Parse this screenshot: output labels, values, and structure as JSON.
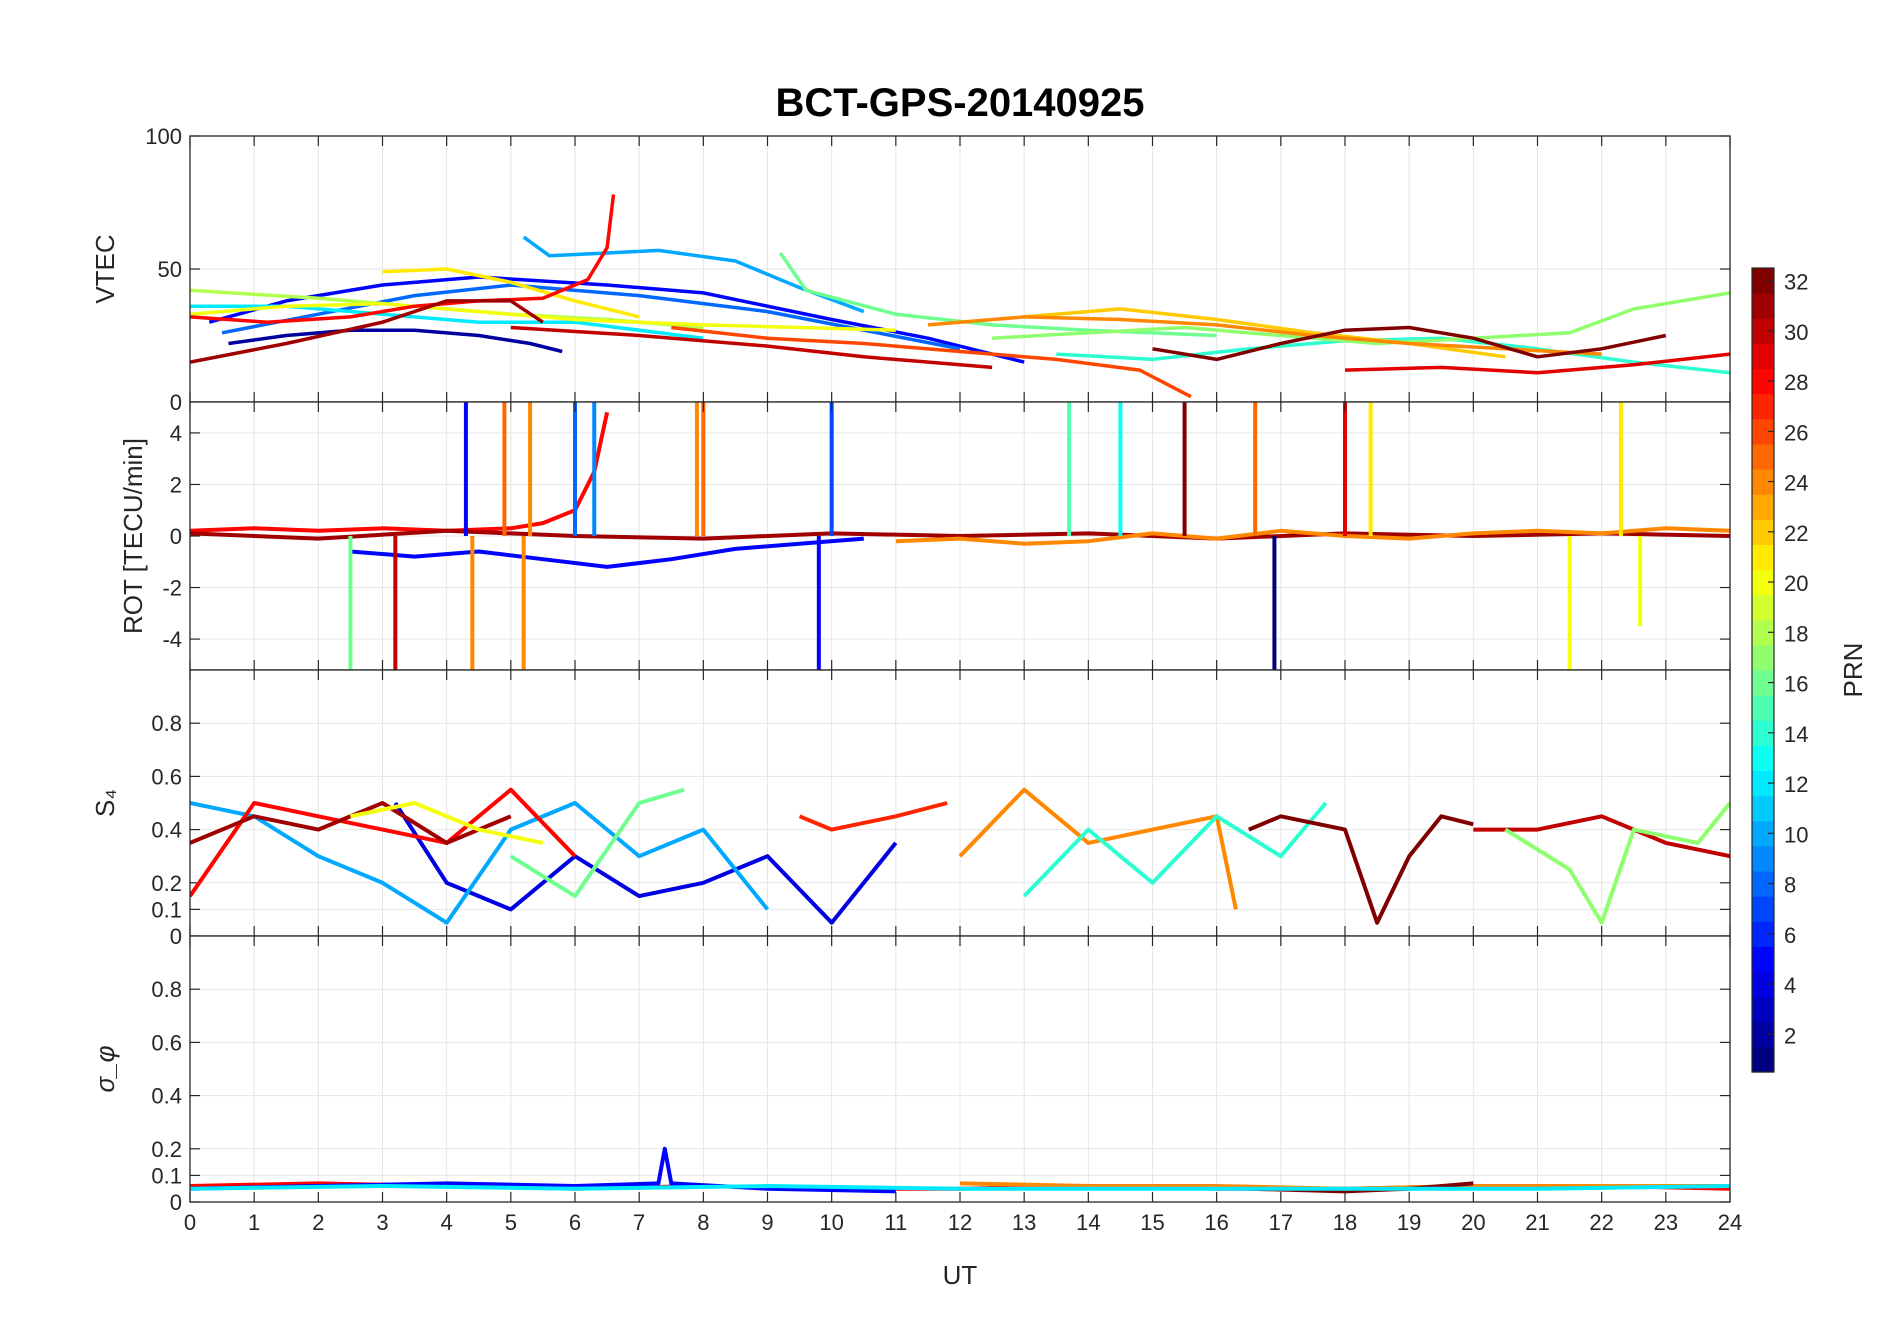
{
  "chart_data": {
    "type": "line",
    "title": "BCT-GPS-20140925",
    "xlabel": "UT",
    "xlim": [
      0,
      24
    ],
    "x_ticks": [
      "0",
      "1",
      "2",
      "3",
      "4",
      "5",
      "6",
      "7",
      "8",
      "9",
      "10",
      "11",
      "12",
      "13",
      "14",
      "15",
      "16",
      "17",
      "18",
      "19",
      "20",
      "21",
      "22",
      "23",
      "24"
    ],
    "colorbar": {
      "label": "PRN",
      "range": [
        1,
        32
      ],
      "ticks": [
        "2",
        "4",
        "6",
        "8",
        "10",
        "12",
        "14",
        "16",
        "18",
        "20",
        "22",
        "24",
        "26",
        "28",
        "30",
        "32"
      ],
      "colormap": "jet"
    },
    "panels": [
      {
        "id": "vtec",
        "ylabel": "VTEC",
        "ylim": [
          0,
          100
        ],
        "y_ticks": [
          "0",
          "50",
          "100"
        ],
        "y_tick_values": [
          0,
          50,
          100
        ],
        "series": [
          {
            "prn": 2,
            "x": [
              0.6,
              1.5,
              2.5,
              3.5,
              4.5,
              5.3,
              5.8
            ],
            "y": [
              22,
              25,
              27,
              27,
              25,
              22,
              19
            ]
          },
          {
            "prn": 5,
            "x": [
              0.3,
              1.5,
              3,
              4.5,
              6.5,
              8,
              10,
              11.5,
              13
            ],
            "y": [
              30,
              38,
              44,
              47,
              44,
              41,
              31,
              24,
              15
            ]
          },
          {
            "prn": 8,
            "x": [
              0.5,
              2,
              3.5,
              5,
              7,
              9,
              10.5,
              12
            ],
            "y": [
              26,
              33,
              40,
              44,
              40,
              34,
              27,
              20
            ]
          },
          {
            "prn": 10,
            "x": [
              5.2,
              5.6,
              6.5,
              7.3,
              8.5,
              9.5,
              10.5
            ],
            "y": [
              62,
              55,
              56,
              57,
              53,
              43,
              34
            ]
          },
          {
            "prn": 12,
            "x": [
              0,
              1.5,
              3,
              4.5,
              6,
              8
            ],
            "y": [
              36,
              36,
              33,
              30,
              30,
              24
            ]
          },
          {
            "prn": 14,
            "x": [
              13.5,
              15,
              16.5,
              18,
              19.5,
              21,
              22.5,
              24
            ],
            "y": [
              18,
              16,
              20,
              23,
              24,
              20,
              15,
              11
            ]
          },
          {
            "prn": 16,
            "x": [
              9.2,
              9.6,
              11,
              12.5,
              14,
              16
            ],
            "y": [
              56,
              42,
              33,
              29,
              27,
              25
            ]
          },
          {
            "prn": 18,
            "x": [
              0,
              2,
              3.5,
              5,
              6.5,
              8
            ],
            "y": [
              42,
              39,
              36,
              33,
              31,
              28
            ]
          },
          {
            "prn": 20,
            "x": [
              0,
              1.5,
              3,
              4.5,
              6,
              7,
              8,
              9.5,
              11
            ],
            "y": [
              33,
              36,
              37,
              34,
              31,
              30,
              29,
              28,
              27
            ]
          },
          {
            "prn": 17,
            "x": [
              12.5,
              14,
              15.5,
              17,
              18.5,
              20,
              21.5,
              22.5,
              24
            ],
            "y": [
              24,
              26,
              28,
              25,
              22,
              24,
              26,
              35,
              41
            ]
          },
          {
            "prn": 21,
            "x": [
              3,
              4,
              5,
              6,
              7
            ],
            "y": [
              49,
              50,
              45,
              38,
              32
            ]
          },
          {
            "prn": 22,
            "x": [
              13,
              14.5,
              16,
              17.5,
              19,
              20.5
            ],
            "y": [
              32,
              35,
              31,
              26,
              22,
              17
            ]
          },
          {
            "prn": 24,
            "x": [
              11.5,
              13,
              14.5,
              16,
              17.5,
              19,
              20.5,
              22
            ],
            "y": [
              29,
              32,
              31,
              29,
              25,
              22,
              20,
              18
            ]
          },
          {
            "prn": 26,
            "x": [
              7.5,
              9,
              10.5,
              12,
              13.5,
              14.8,
              15.6
            ],
            "y": [
              28,
              24,
              22,
              19,
              16,
              12,
              2
            ]
          },
          {
            "prn": 28,
            "x": [
              0,
              1.2,
              2.5,
              3.5,
              4.5,
              5.5,
              6.2,
              6.5,
              6.6
            ],
            "y": [
              32,
              30,
              32,
              36,
              38,
              39,
              46,
              58,
              78
            ]
          },
          {
            "prn": 29,
            "x": [
              18,
              19.5,
              21,
              22.5,
              24
            ],
            "y": [
              12,
              13,
              11,
              14,
              18
            ]
          },
          {
            "prn": 30,
            "x": [
              5,
              7,
              9,
              10.5,
              12.5
            ],
            "y": [
              28,
              25,
              21,
              17,
              13
            ]
          },
          {
            "prn": 31,
            "x": [
              0,
              1.5,
              3,
              4,
              5,
              5.5
            ],
            "y": [
              15,
              22,
              30,
              38,
              38,
              30
            ]
          },
          {
            "prn": 32,
            "x": [
              15,
              16,
              17,
              18,
              19,
              20,
              21,
              22,
              23
            ],
            "y": [
              20,
              16,
              22,
              27,
              28,
              24,
              17,
              20,
              25
            ]
          }
        ]
      },
      {
        "id": "rot",
        "ylabel": "ROT [TECU/min]",
        "ylim": [
          -5.2,
          5.2
        ],
        "y_ticks": [
          "-4",
          "-2",
          "0",
          "2",
          "4"
        ],
        "y_tick_values": [
          -4,
          -2,
          0,
          2,
          4
        ],
        "series": [
          {
            "prn": 28,
            "x": [
              0,
              1,
              2,
              3,
              4,
              5,
              5.5,
              6,
              6.3,
              6.5
            ],
            "y": [
              0.2,
              0.3,
              0.2,
              0.3,
              0.2,
              0.3,
              0.5,
              1.0,
              2.5,
              4.8
            ]
          },
          {
            "prn": 31,
            "x": [
              0,
              2,
              4,
              6,
              8,
              10,
              12,
              14,
              16,
              18,
              20,
              22,
              24
            ],
            "y": [
              0.1,
              -0.1,
              0.2,
              0,
              -0.1,
              0.1,
              0,
              0.1,
              -0.1,
              0.1,
              0,
              0.1,
              0
            ]
          },
          {
            "prn": 5,
            "x": [
              2.5,
              3.5,
              4.5,
              5.5,
              6.5,
              7.5,
              8.5,
              9.5,
              10.5
            ],
            "y": [
              -0.6,
              -0.8,
              -0.6,
              -0.9,
              -1.2,
              -0.9,
              -0.5,
              -0.3,
              -0.1
            ]
          },
          {
            "prn": 24,
            "x": [
              11,
              12,
              13,
              14,
              15,
              16,
              17,
              18,
              19,
              20,
              21,
              22,
              23,
              24
            ],
            "y": [
              -0.2,
              -0.1,
              -0.3,
              -0.2,
              0.1,
              -0.1,
              0.2,
              0,
              -0.1,
              0.1,
              0.2,
              0.1,
              0.3,
              0.2
            ]
          }
        ],
        "spikes": [
          {
            "prn": 16,
            "x": 2.5,
            "y": -5.2
          },
          {
            "prn": 30,
            "x": 3.2,
            "y": -5.2
          },
          {
            "prn": 24,
            "x": 4.4,
            "y": -5.2
          },
          {
            "prn": 5,
            "x": 4.3,
            "y": 5.2
          },
          {
            "prn": 25,
            "x": 4.9,
            "y": 5.2
          },
          {
            "prn": 24,
            "x": 5.3,
            "y": 5.2
          },
          {
            "prn": 24,
            "x": 5.2,
            "y": -5.2
          },
          {
            "prn": 8,
            "x": 6.0,
            "y": 5.2
          },
          {
            "prn": 9,
            "x": 6.3,
            "y": 5.2
          },
          {
            "prn": 24,
            "x": 7.9,
            "y": 5.2
          },
          {
            "prn": 25,
            "x": 8.0,
            "y": 5.2
          },
          {
            "prn": 5,
            "x": 9.8,
            "y": -5.2
          },
          {
            "prn": 7,
            "x": 10.0,
            "y": 5.2
          },
          {
            "prn": 15,
            "x": 13.7,
            "y": 5.2
          },
          {
            "prn": 13,
            "x": 14.5,
            "y": 5.2
          },
          {
            "prn": 32,
            "x": 15.5,
            "y": 5.2
          },
          {
            "prn": 25,
            "x": 16.6,
            "y": 5.2
          },
          {
            "prn": 1,
            "x": 16.9,
            "y": -5.2
          },
          {
            "prn": 29,
            "x": 18.0,
            "y": 5.2
          },
          {
            "prn": 21,
            "x": 18.4,
            "y": 5.2
          },
          {
            "prn": 20,
            "x": 21.5,
            "y": -5.2
          },
          {
            "prn": 21,
            "x": 22.3,
            "y": 5.2
          },
          {
            "prn": 20,
            "x": 22.6,
            "y": -3.5
          }
        ]
      },
      {
        "id": "s4",
        "ylabel": "S₄",
        "ylim": [
          0,
          1
        ],
        "y_ticks": [
          "0",
          "0.1",
          "0.2",
          "0.4",
          "0.6",
          "0.8"
        ],
        "y_tick_values": [
          0,
          0.1,
          0.2,
          0.4,
          0.6,
          0.8
        ],
        "series": [
          {
            "prn": 4,
            "x": [
              3.2,
              4,
              5,
              6,
              7,
              8,
              9,
              10,
              11
            ],
            "y": [
              0.5,
              0.2,
              0.1,
              0.3,
              0.15,
              0.2,
              0.3,
              0.05,
              0.35
            ]
          },
          {
            "prn": 10,
            "x": [
              0,
              1,
              2,
              3,
              4,
              5,
              6,
              7,
              8,
              9
            ],
            "y": [
              0.5,
              0.45,
              0.3,
              0.2,
              0.05,
              0.4,
              0.5,
              0.3,
              0.4,
              0.1
            ]
          },
          {
            "prn": 28,
            "x": [
              0,
              1,
              2,
              3,
              4,
              5,
              6
            ],
            "y": [
              0.15,
              0.5,
              0.45,
              0.4,
              0.35,
              0.55,
              0.3
            ]
          },
          {
            "prn": 31,
            "x": [
              0,
              1,
              2,
              3,
              4,
              5
            ],
            "y": [
              0.35,
              0.45,
              0.4,
              0.5,
              0.35,
              0.45
            ]
          },
          {
            "prn": 20,
            "x": [
              2.5,
              3.5,
              4.5,
              5.5
            ],
            "y": [
              0.45,
              0.5,
              0.4,
              0.35
            ]
          },
          {
            "prn": 16,
            "x": [
              5,
              6,
              7,
              7.7
            ],
            "y": [
              0.3,
              0.15,
              0.5,
              0.55
            ]
          },
          {
            "prn": 27,
            "x": [
              9.5,
              10,
              11,
              11.8
            ],
            "y": [
              0.45,
              0.4,
              0.45,
              0.5
            ]
          },
          {
            "prn": 24,
            "x": [
              12,
              13,
              14,
              15,
              16,
              16.3
            ],
            "y": [
              0.3,
              0.55,
              0.35,
              0.4,
              0.45,
              0.1
            ]
          },
          {
            "prn": 14,
            "x": [
              13,
              14,
              15,
              16,
              17,
              17.7
            ],
            "y": [
              0.15,
              0.4,
              0.2,
              0.45,
              0.3,
              0.5
            ]
          },
          {
            "prn": 32,
            "x": [
              16.5,
              17,
              18,
              18.5,
              19,
              19.5,
              20
            ],
            "y": [
              0.4,
              0.45,
              0.4,
              0.05,
              0.3,
              0.45,
              0.42
            ]
          },
          {
            "prn": 30,
            "x": [
              20,
              21,
              22,
              23,
              24
            ],
            "y": [
              0.4,
              0.4,
              0.45,
              0.35,
              0.3
            ]
          },
          {
            "prn": 17,
            "x": [
              20.5,
              21.5,
              22,
              22.5,
              23.5,
              24
            ],
            "y": [
              0.4,
              0.25,
              0.05,
              0.4,
              0.35,
              0.5
            ]
          }
        ]
      },
      {
        "id": "sigma",
        "ylabel": "σ_φ",
        "ylim": [
          0,
          1
        ],
        "y_ticks": [
          "0",
          "0.1",
          "0.2",
          "0.4",
          "0.6",
          "0.8"
        ],
        "y_tick_values": [
          0,
          0.1,
          0.2,
          0.4,
          0.6,
          0.8
        ],
        "series": [
          {
            "prn": 28,
            "x": [
              0,
              2,
              4,
              6,
              8,
              10,
              12,
              14,
              16,
              18,
              20,
              22,
              24
            ],
            "y": [
              0.06,
              0.07,
              0.06,
              0.05,
              0.06,
              0.05,
              0.05,
              0.06,
              0.05,
              0.05,
              0.06,
              0.06,
              0.05
            ]
          },
          {
            "prn": 5,
            "x": [
              0,
              2,
              4,
              6,
              7.3,
              7.4,
              7.5,
              9,
              11
            ],
            "y": [
              0.05,
              0.06,
              0.07,
              0.06,
              0.07,
              0.2,
              0.07,
              0.05,
              0.04
            ]
          },
          {
            "prn": 24,
            "x": [
              12,
              14,
              16,
              18,
              20,
              22,
              24
            ],
            "y": [
              0.07,
              0.06,
              0.06,
              0.05,
              0.06,
              0.06,
              0.06
            ]
          },
          {
            "prn": 32,
            "x": [
              16.5,
              18,
              19,
              20
            ],
            "y": [
              0.05,
              0.04,
              0.05,
              0.07
            ]
          },
          {
            "prn": 12,
            "x": [
              0,
              3,
              6,
              9,
              12,
              15,
              18,
              21,
              24
            ],
            "y": [
              0.05,
              0.06,
              0.05,
              0.06,
              0.05,
              0.05,
              0.05,
              0.05,
              0.06
            ]
          }
        ]
      }
    ]
  }
}
